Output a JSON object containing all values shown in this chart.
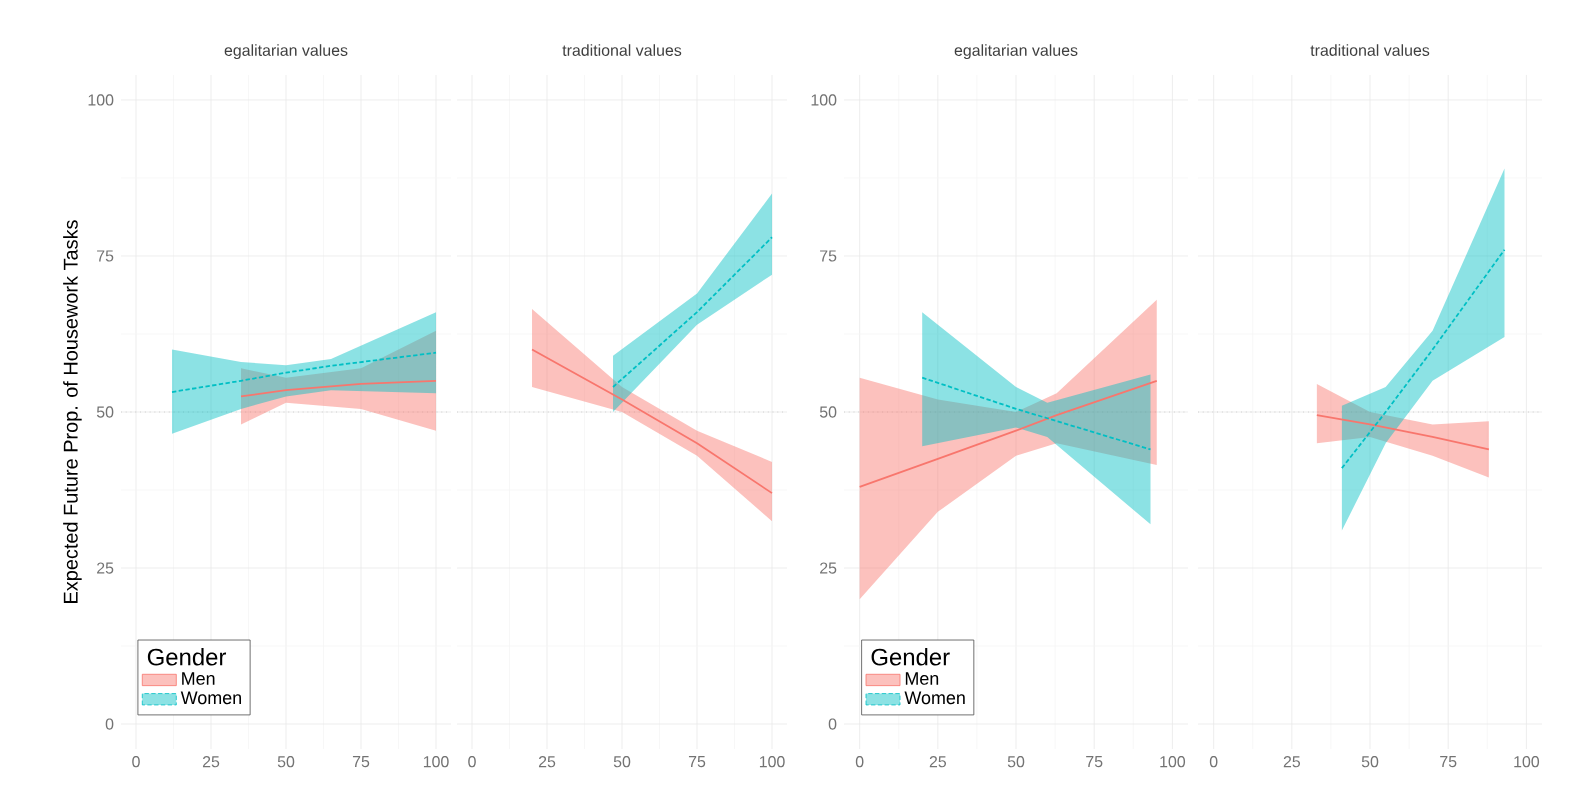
{
  "chart_data": [
    {
      "type": "line",
      "title": "egalitarian values",
      "ylabel": "Expected Future Prop. of Housework Tasks",
      "legend_title": "Gender",
      "legend": "bottom left",
      "grid": true,
      "xlim": [
        -5,
        105
      ],
      "ylim": [
        -4,
        104
      ],
      "xticks": [
        0,
        25,
        50,
        75,
        100
      ],
      "yticks": [
        0,
        25,
        50,
        75,
        100
      ],
      "ref_lines": [
        {
          "axis": "y",
          "value": 50,
          "color": "#bbbbbb",
          "line_style": "dotted"
        }
      ],
      "series": [
        {
          "name": "Men",
          "color": "#f8766d",
          "line_style": "solid",
          "x": [
            35,
            50,
            75,
            100
          ],
          "values": [
            52.5,
            53.5,
            54.5,
            55
          ],
          "lower": [
            48,
            51.5,
            50.5,
            47
          ],
          "upper": [
            57,
            55.5,
            57,
            63
          ]
        },
        {
          "name": "Women",
          "color": "#00bfc4",
          "line_style": "dashed",
          "x": [
            12,
            35,
            50,
            65,
            100
          ],
          "values": [
            53.2,
            55,
            56.3,
            57.4,
            59.5
          ],
          "lower": [
            46.5,
            50.5,
            52.5,
            53.5,
            53
          ],
          "upper": [
            60,
            58,
            57.5,
            58.5,
            66
          ]
        }
      ]
    },
    {
      "type": "line",
      "title": "traditional values",
      "grid": true,
      "tick_labels": "x",
      "xlim": [
        -5,
        105
      ],
      "ylim": [
        -4,
        104
      ],
      "xticks": [
        0,
        25,
        50,
        75,
        100
      ],
      "yticks": [
        0,
        25,
        50,
        75,
        100
      ],
      "ref_lines": [
        {
          "axis": "y",
          "value": 50,
          "color": "#bbbbbb",
          "line_style": "dotted"
        }
      ],
      "series": [
        {
          "color": "#f8766d",
          "line_style": "solid",
          "x": [
            20,
            50,
            75,
            100
          ],
          "values": [
            60,
            52,
            45,
            37
          ],
          "lower": [
            54,
            50,
            43,
            32.5
          ],
          "upper": [
            66.5,
            54,
            47,
            42
          ]
        },
        {
          "color": "#00bfc4",
          "line_style": "dashed",
          "x": [
            47,
            75,
            100
          ],
          "values": [
            54,
            66,
            78
          ],
          "lower": [
            50,
            64,
            72
          ],
          "upper": [
            59,
            69,
            85
          ]
        }
      ]
    },
    {
      "type": "line",
      "title": "egalitarian values",
      "legend_title": "Gender",
      "legend": "bottom left",
      "grid": true,
      "xlim": [
        -5,
        105
      ],
      "ylim": [
        -4,
        104
      ],
      "xticks": [
        0,
        25,
        50,
        75,
        100
      ],
      "yticks": [
        0,
        25,
        50,
        75,
        100
      ],
      "ref_lines": [
        {
          "axis": "y",
          "value": 50,
          "color": "#bbbbbb",
          "line_style": "dotted"
        }
      ],
      "series": [
        {
          "name": "Men",
          "color": "#f8766d",
          "line_style": "solid",
          "x": [
            0,
            25,
            50,
            63,
            95
          ],
          "values": [
            38,
            42.5,
            47,
            49.5,
            55
          ],
          "lower": [
            20,
            34,
            43,
            45,
            41.5
          ],
          "upper": [
            55.5,
            52,
            50,
            53,
            68
          ]
        },
        {
          "name": "Women",
          "color": "#00bfc4",
          "line_style": "dashed",
          "x": [
            20,
            50,
            60,
            93
          ],
          "values": [
            55.5,
            50.5,
            49,
            44
          ],
          "lower": [
            44.5,
            47.5,
            46,
            32
          ],
          "upper": [
            66,
            54,
            51.5,
            56
          ]
        }
      ]
    },
    {
      "type": "line",
      "title": "traditional values",
      "grid": true,
      "tick_labels": "x",
      "xlim": [
        -5,
        105
      ],
      "ylim": [
        -4,
        104
      ],
      "xticks": [
        0,
        25,
        50,
        75,
        100
      ],
      "yticks": [
        0,
        25,
        50,
        75,
        100
      ],
      "ref_lines": [
        {
          "axis": "y",
          "value": 50,
          "color": "#bbbbbb",
          "line_style": "dotted"
        }
      ],
      "series": [
        {
          "color": "#f8766d",
          "line_style": "solid",
          "x": [
            33,
            50,
            70,
            88
          ],
          "values": [
            49.5,
            48,
            46,
            44
          ],
          "lower": [
            45,
            46,
            43,
            39.5
          ],
          "upper": [
            54.5,
            50,
            48,
            48.5
          ]
        },
        {
          "color": "#00bfc4",
          "line_style": "dashed",
          "x": [
            41,
            55,
            70,
            93
          ],
          "values": [
            41,
            50,
            60,
            76
          ],
          "lower": [
            31,
            45,
            55,
            62
          ],
          "upper": [
            51,
            54,
            63,
            89
          ]
        }
      ]
    }
  ]
}
